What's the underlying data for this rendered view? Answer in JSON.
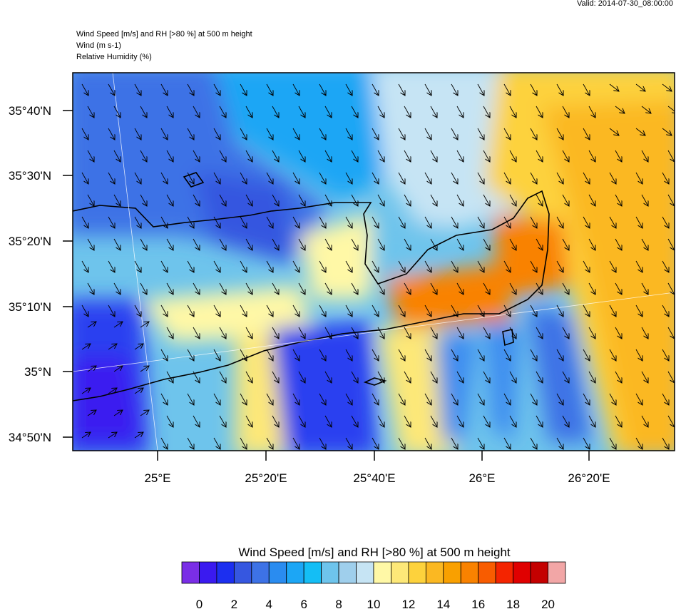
{
  "header": {
    "valid": "Valid: 2014-07-30_08:00:00",
    "lines": [
      "Wind Speed [m/s] and RH [>80 %] at 500 m height",
      "Wind   (m s-1)",
      "Relative Humidity   (%)"
    ]
  },
  "map": {
    "lat_labels": [
      "35°40'N",
      "35°30'N",
      "35°20'N",
      "35°10'N",
      "35°N",
      "34°50'N"
    ],
    "lon_labels": [
      "25°E",
      "25°20'E",
      "25°40'E",
      "26°E",
      "26°20'E"
    ]
  },
  "colorbar": {
    "title": "Wind Speed [m/s] and RH [>80 %] at 500 m height",
    "colors": [
      "#7a2ee6",
      "#3a1af0",
      "#1c2ff0",
      "#3657e0",
      "#3d72e6",
      "#2a8cf0",
      "#1ca6f5",
      "#14bef5",
      "#6ec4ec",
      "#9fcfec",
      "#c6e4f4",
      "#fff8a6",
      "#fde878",
      "#fdd23c",
      "#fbb822",
      "#f9a000",
      "#f98200",
      "#f85c00",
      "#f42400",
      "#e00000",
      "#c40000",
      "#f2a6a6"
    ],
    "lim": [
      -1,
      21
    ],
    "ticks": [
      0,
      2,
      4,
      6,
      8,
      10,
      12,
      14,
      16,
      18,
      20
    ]
  }
}
